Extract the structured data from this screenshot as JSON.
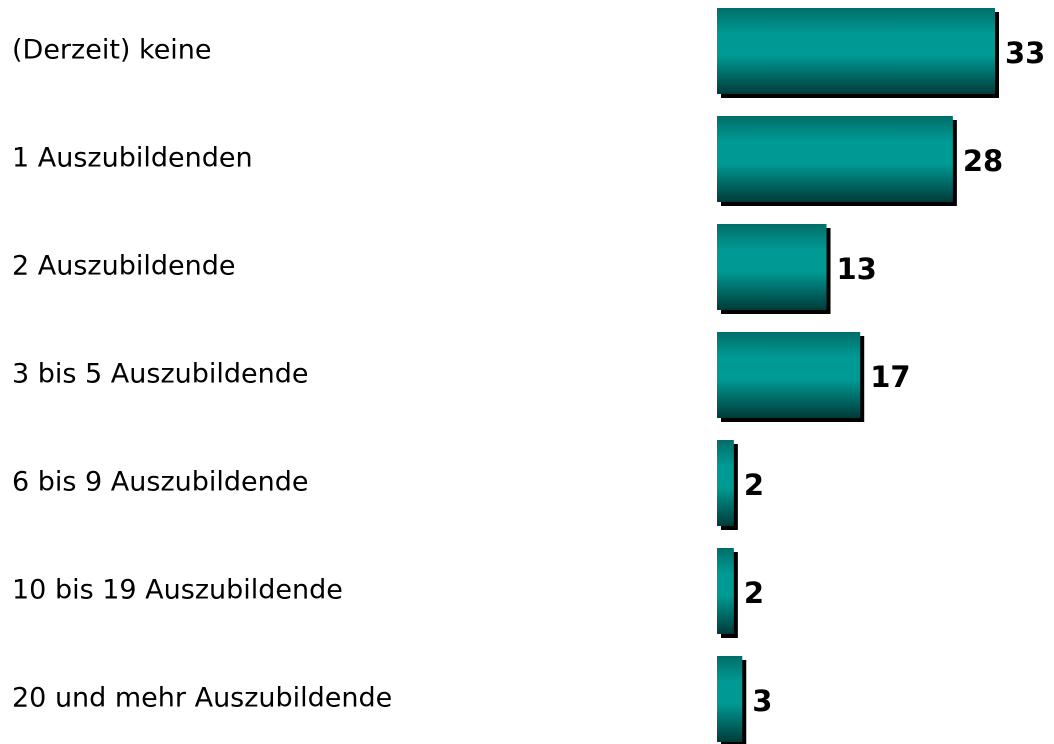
{
  "chart_data": {
    "type": "bar",
    "categories": [
      "(Derzeit) keine",
      "1 Auszubildenden",
      "2 Auszubildende",
      "3 bis 5 Auszubildende",
      "6 bis 9 Auszubildende",
      "10 bis 19 Auszubildende",
      "20 und mehr Auszubildende"
    ],
    "values": [
      33,
      28,
      13,
      17,
      2,
      2,
      3
    ],
    "color": "#009a94"
  }
}
